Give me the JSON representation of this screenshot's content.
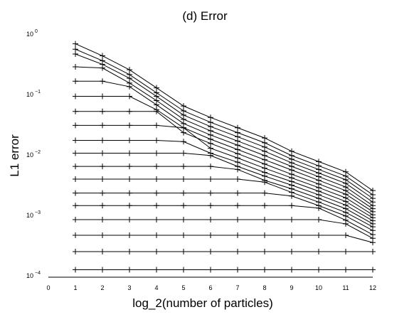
{
  "chart_data": {
    "type": "line",
    "title": "(d) Error",
    "xlabel": "log_2(number of particles)",
    "ylabel": "L1 error",
    "xlim": [
      0,
      12
    ],
    "ylim": [
      0.0001,
      1
    ],
    "yscale": "log",
    "grid": false,
    "legend": "none",
    "marker": "plus",
    "line_color": "#000000",
    "x": [
      1,
      2,
      3,
      4,
      5,
      6,
      7,
      8,
      9,
      10,
      11,
      12
    ],
    "x_tick_labels": [
      "0",
      "1",
      "2",
      "3",
      "4",
      "5",
      "6",
      "7",
      "8",
      "9",
      "10",
      "11",
      "12"
    ],
    "y_tick_labels": [
      {
        "base": "10",
        "exp": "0"
      },
      {
        "base": "10",
        "exp": "−1"
      },
      {
        "base": "10",
        "exp": "−2"
      },
      {
        "base": "10",
        "exp": "−3"
      },
      {
        "base": "10",
        "exp": "−4"
      }
    ],
    "series": [
      {
        "values": [
          0.000126,
          0.000126,
          0.000126,
          0.000126,
          0.000126,
          0.000126,
          0.000126,
          0.000126,
          0.000126,
          0.000126,
          0.000126,
          0.000126
        ]
      },
      {
        "values": [
          0.000251,
          0.000251,
          0.000251,
          0.000251,
          0.000251,
          0.000251,
          0.000251,
          0.000251,
          0.000251,
          0.000251,
          0.000251,
          0.000251
        ]
      },
      {
        "values": [
          0.000468,
          0.000468,
          0.000468,
          0.000468,
          0.000468,
          0.000468,
          0.000468,
          0.000468,
          0.000468,
          0.000468,
          0.000468,
          0.000355
        ]
      },
      {
        "values": [
          0.000851,
          0.000851,
          0.000851,
          0.000851,
          0.000851,
          0.000851,
          0.000851,
          0.000851,
          0.000851,
          0.000851,
          0.000724,
          0.000417
        ]
      },
      {
        "values": [
          0.00145,
          0.00145,
          0.00145,
          0.00145,
          0.00145,
          0.00145,
          0.00145,
          0.00145,
          0.00145,
          0.00132,
          0.000832,
          0.000479
        ]
      },
      {
        "values": [
          0.00234,
          0.00234,
          0.00234,
          0.00234,
          0.00234,
          0.00234,
          0.00234,
          0.00234,
          0.00209,
          0.00145,
          0.000977,
          0.000562
        ]
      },
      {
        "values": [
          0.00398,
          0.00398,
          0.00398,
          0.00398,
          0.00398,
          0.00398,
          0.00398,
          0.00355,
          0.0024,
          0.00166,
          0.00112,
          0.000646
        ]
      },
      {
        "values": [
          0.00646,
          0.00646,
          0.00646,
          0.00646,
          0.00646,
          0.00646,
          0.00575,
          0.0038,
          0.00275,
          0.00191,
          0.00129,
          0.000724
        ]
      },
      {
        "values": [
          0.0107,
          0.0107,
          0.0107,
          0.0107,
          0.0107,
          0.0098,
          0.00646,
          0.00447,
          0.00316,
          0.00219,
          0.00148,
          0.000813
        ]
      },
      {
        "values": [
          0.0174,
          0.0174,
          0.0174,
          0.0174,
          0.0166,
          0.0107,
          0.00759,
          0.00513,
          0.00363,
          0.00251,
          0.0017,
          0.000912
        ]
      },
      {
        "values": [
          0.0309,
          0.0309,
          0.0309,
          0.0309,
          0.0282,
          0.0129,
          0.00891,
          0.00603,
          0.00417,
          0.00288,
          0.00195,
          0.00102
        ]
      },
      {
        "values": [
          0.0525,
          0.0525,
          0.0525,
          0.0525,
          0.0234,
          0.0155,
          0.0105,
          0.00708,
          0.00479,
          0.00331,
          0.00224,
          0.00115
        ]
      },
      {
        "values": [
          0.0933,
          0.0933,
          0.0933,
          0.0562,
          0.0282,
          0.0182,
          0.0123,
          0.00832,
          0.00562,
          0.0038,
          0.00257,
          0.00129
        ]
      },
      {
        "values": [
          0.166,
          0.166,
          0.135,
          0.0676,
          0.0331,
          0.0214,
          0.0145,
          0.00977,
          0.00646,
          0.00437,
          0.00295,
          0.00145
        ]
      },
      {
        "values": [
          0.288,
          0.275,
          0.155,
          0.0794,
          0.0389,
          0.0251,
          0.017,
          0.0115,
          0.00741,
          0.00501,
          0.00339,
          0.00166
        ]
      },
      {
        "values": [
          0.468,
          0.316,
          0.186,
          0.0933,
          0.0457,
          0.0295,
          0.02,
          0.0135,
          0.00851,
          0.00575,
          0.00389,
          0.00191
        ]
      },
      {
        "values": [
          0.562,
          0.363,
          0.214,
          0.107,
          0.0537,
          0.0347,
          0.0234,
          0.0159,
          0.00977,
          0.00661,
          0.00447,
          0.00219
        ]
      },
      {
        "values": [
          0.692,
          0.437,
          0.257,
          0.129,
          0.0646,
          0.0417,
          0.0282,
          0.0191,
          0.0115,
          0.00776,
          0.00525,
          0.00257
        ]
      }
    ]
  }
}
